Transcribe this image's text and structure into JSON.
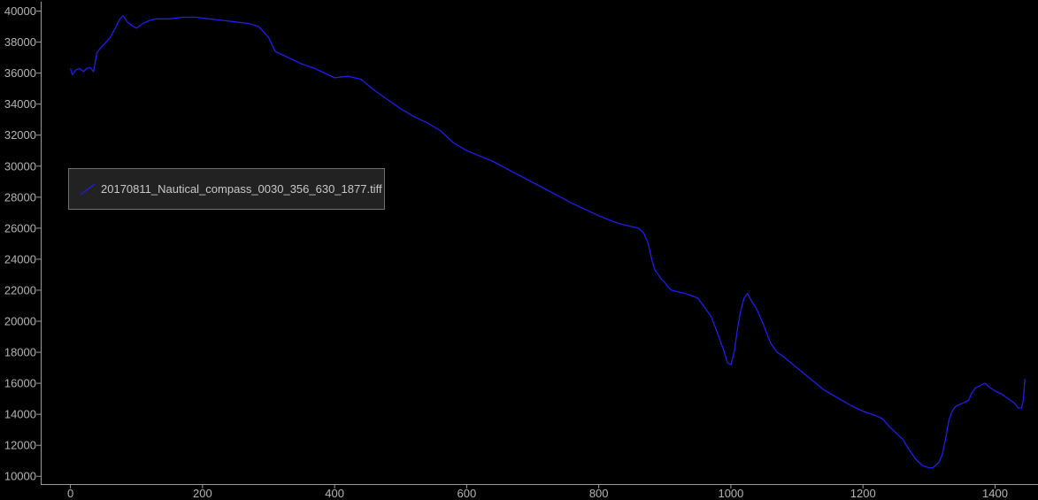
{
  "chart_data": {
    "type": "line",
    "xlim": [
      -45,
      1465
    ],
    "ylim": [
      9500,
      40600
    ],
    "xticks": [
      0,
      200,
      400,
      600,
      800,
      1000,
      1200,
      1400
    ],
    "yticks": [
      10000,
      12000,
      14000,
      16000,
      18000,
      20000,
      22000,
      24000,
      26000,
      28000,
      30000,
      32000,
      34000,
      36000,
      38000,
      40000
    ],
    "grid": false,
    "legend_position": "upper-left",
    "series_color": "#1e1ef0",
    "series": [
      {
        "name": "20170811_Nautical_compass_0030_356_630_1877.tiff",
        "x": [
          0,
          3,
          8,
          14,
          20,
          24,
          30,
          35,
          40,
          45,
          52,
          60,
          68,
          75,
          80,
          86,
          92,
          100,
          110,
          120,
          130,
          150,
          170,
          190,
          210,
          230,
          250,
          270,
          285,
          300,
          310,
          330,
          350,
          370,
          385,
          400,
          420,
          440,
          460,
          480,
          500,
          520,
          540,
          560,
          580,
          600,
          640,
          680,
          720,
          760,
          800,
          830,
          850,
          860,
          868,
          875,
          880,
          885,
          890,
          895,
          900,
          905,
          910,
          920,
          930,
          950,
          970,
          980,
          990,
          995,
          1000,
          1005,
          1010,
          1015,
          1020,
          1025,
          1030,
          1040,
          1050,
          1060,
          1070,
          1080,
          1100,
          1120,
          1140,
          1160,
          1180,
          1200,
          1220,
          1230,
          1240,
          1250,
          1260,
          1270,
          1280,
          1290,
          1300,
          1305,
          1310,
          1315,
          1320,
          1325,
          1330,
          1335,
          1340,
          1350,
          1360,
          1365,
          1370,
          1375,
          1380,
          1385,
          1390,
          1400,
          1410,
          1420,
          1430,
          1435,
          1440,
          1443,
          1445
        ],
        "y": [
          36300,
          35900,
          36200,
          36300,
          36100,
          36300,
          36350,
          36100,
          37300,
          37600,
          37900,
          38300,
          38900,
          39500,
          39700,
          39300,
          39100,
          38900,
          39200,
          39400,
          39500,
          39500,
          39600,
          39600,
          39500,
          39400,
          39300,
          39200,
          39000,
          38300,
          37400,
          37000,
          36600,
          36300,
          36000,
          35700,
          35800,
          35600,
          34900,
          34300,
          33700,
          33200,
          32800,
          32300,
          31500,
          31000,
          30300,
          29400,
          28500,
          27600,
          26800,
          26300,
          26100,
          26000,
          25700,
          25000,
          24000,
          23300,
          23000,
          22700,
          22500,
          22200,
          22000,
          21900,
          21800,
          21500,
          20300,
          19200,
          18000,
          17300,
          17200,
          18000,
          19500,
          20700,
          21500,
          21800,
          21400,
          20700,
          19700,
          18600,
          18000,
          17700,
          17000,
          16300,
          15600,
          15100,
          14600,
          14200,
          13900,
          13700,
          13200,
          12800,
          12400,
          11700,
          11100,
          10700,
          10550,
          10550,
          10700,
          10900,
          11400,
          12400,
          13600,
          14200,
          14500,
          14700,
          14900,
          15400,
          15700,
          15800,
          15900,
          16000,
          15800,
          15500,
          15300,
          15000,
          14700,
          14400,
          14400,
          15000,
          16300
        ]
      }
    ]
  }
}
